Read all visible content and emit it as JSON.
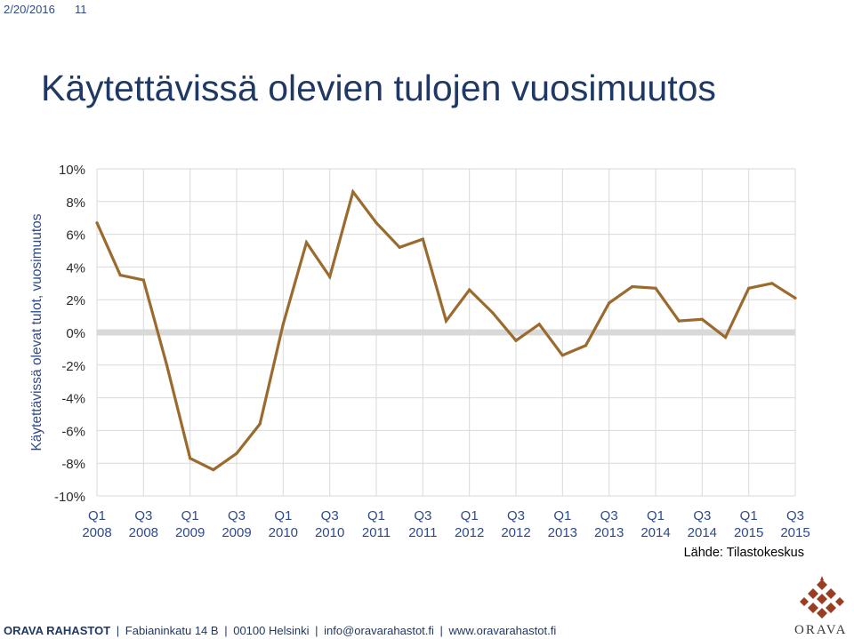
{
  "header": {
    "date": "2/20/2016",
    "page_number": "11"
  },
  "title": "Käytettävissä olevien tulojen vuosimuutos",
  "source": "Lähde: Tilastokeskus",
  "footer": {
    "brand": "ORAVA RAHASTOT",
    "parts": [
      "Fabianinkatu 14 B",
      "00100 Helsinki",
      "info@oravarahastot.fi",
      "www.oravarahastot.fi"
    ]
  },
  "logo": {
    "text": "ORAVA"
  },
  "colors": {
    "line": "#9b6a2e",
    "zero_line": "#d9d9d9",
    "grid": "#d9d9d9",
    "title": "#1f3864"
  },
  "chart_data": {
    "type": "line",
    "title": "Käytettävissä olevien tulojen vuosimuutos",
    "ylabel": "Käytettävissä olevat tulot, vuosimuutos",
    "xlabel": "",
    "ylim": [
      -10,
      10
    ],
    "yticks": [
      "10%",
      "8%",
      "6%",
      "4%",
      "2%",
      "0%",
      "-2%",
      "-4%",
      "-6%",
      "-8%",
      "-10%"
    ],
    "grid": true,
    "x": [
      "Q1 2008",
      "Q2 2008",
      "Q3 2008",
      "Q4 2008",
      "Q1 2009",
      "Q2 2009",
      "Q3 2009",
      "Q4 2009",
      "Q1 2010",
      "Q2 2010",
      "Q3 2010",
      "Q4 2010",
      "Q1 2011",
      "Q2 2011",
      "Q3 2011",
      "Q4 2011",
      "Q1 2012",
      "Q2 2012",
      "Q3 2012",
      "Q4 2012",
      "Q1 2013",
      "Q2 2013",
      "Q3 2013",
      "Q4 2013",
      "Q1 2014",
      "Q2 2014",
      "Q3 2014",
      "Q4 2014",
      "Q1 2015",
      "Q2 2015",
      "Q3 2015"
    ],
    "xtick_labels": [
      {
        "q": "Q1",
        "year": "2008"
      },
      {
        "q": "Q3",
        "year": "2008"
      },
      {
        "q": "Q1",
        "year": "2009"
      },
      {
        "q": "Q3",
        "year": "2009"
      },
      {
        "q": "Q1",
        "year": "2010"
      },
      {
        "q": "Q3",
        "year": "2010"
      },
      {
        "q": "Q1",
        "year": "2011"
      },
      {
        "q": "Q3",
        "year": "2011"
      },
      {
        "q": "Q1",
        "year": "2012"
      },
      {
        "q": "Q3",
        "year": "2012"
      },
      {
        "q": "Q1",
        "year": "2013"
      },
      {
        "q": "Q3",
        "year": "2013"
      },
      {
        "q": "Q1",
        "year": "2014"
      },
      {
        "q": "Q3",
        "year": "2014"
      },
      {
        "q": "Q1",
        "year": "2015"
      },
      {
        "q": "Q3",
        "year": "2015"
      }
    ],
    "series": [
      {
        "values": [
          6.7,
          3.5,
          3.2,
          -2.0,
          -7.7,
          -8.4,
          -7.4,
          -5.6,
          0.5,
          5.5,
          3.4,
          8.6,
          6.7,
          5.2,
          5.7,
          0.7,
          2.6,
          1.2,
          -0.5,
          0.5,
          -1.4,
          -0.8,
          1.8,
          2.8,
          2.7,
          0.7,
          0.8,
          -0.3,
          2.7,
          3.0,
          2.1
        ]
      }
    ]
  }
}
